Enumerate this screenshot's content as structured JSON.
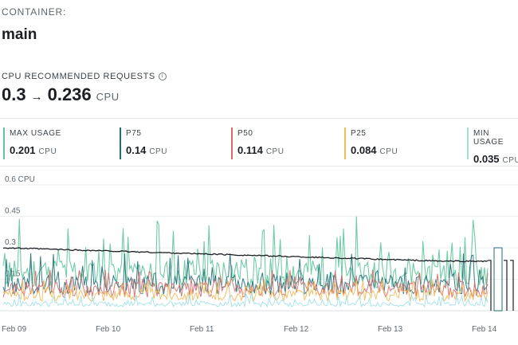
{
  "container": {
    "label": "CONTAINER:",
    "name": "main"
  },
  "recommendation": {
    "label": "CPU RECOMMENDED REQUESTS",
    "info_icon": "info-icon",
    "current": "0.3",
    "recommended": "0.236",
    "unit": "CPU"
  },
  "stats": [
    {
      "title": "MAX USAGE",
      "value": "0.201",
      "unit": "CPU",
      "color": "#5fc79a"
    },
    {
      "title": "P75",
      "value": "0.14",
      "unit": "CPU",
      "color": "#1f6e74"
    },
    {
      "title": "P50",
      "value": "0.114",
      "unit": "CPU",
      "color": "#d46a6a"
    },
    {
      "title": "P25",
      "value": "0.084",
      "unit": "CPU",
      "color": "#f0b95a"
    },
    {
      "title": "MIN USAGE",
      "value": "0.035",
      "unit": "CPU",
      "color": "#9fe0e8"
    }
  ],
  "chart_data": {
    "type": "line",
    "y_ticks": [
      "0.6 CPU",
      "0.45",
      "0.3",
      "0.15"
    ],
    "y_tick_values": [
      0.6,
      0.45,
      0.3,
      0.15
    ],
    "ylim": [
      0,
      0.6
    ],
    "x_ticks": [
      "Feb 09",
      "Feb 10",
      "Feb 11",
      "Feb 12",
      "Feb 13",
      "Feb 14"
    ],
    "grid": true,
    "series": [
      {
        "color": "#5fc79a",
        "level": 0.2,
        "spike": 0.45
      },
      {
        "color": "#1f6e74",
        "level": 0.14,
        "spike": 0.28
      },
      {
        "color": "#d46a6a",
        "level": 0.114,
        "spike": 0.2
      },
      {
        "color": "#f0b95a",
        "level": 0.084,
        "spike": 0.15
      },
      {
        "color": "#9fe0e8",
        "level": 0.035,
        "spike": 0.08
      }
    ],
    "recommendation_line": {
      "color": "#1b1f24",
      "start": 0.3,
      "end": 0.236
    }
  }
}
